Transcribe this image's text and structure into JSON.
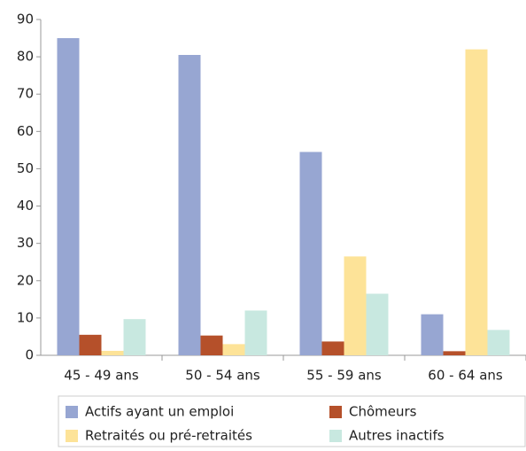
{
  "chart_data": {
    "type": "bar",
    "categories": [
      "45 - 49 ans",
      "50 - 54 ans",
      "55 - 59 ans",
      "60 - 64 ans"
    ],
    "series": [
      {
        "name": "Actifs ayant un emploi",
        "color": "#97a6d2",
        "values": [
          85,
          80.5,
          54.5,
          11
        ]
      },
      {
        "name": "Chômeurs",
        "color": "#b5502a",
        "values": [
          5.5,
          5.3,
          3.7,
          1.1
        ]
      },
      {
        "name": "Retraités ou pré-retraités",
        "color": "#fde398",
        "values": [
          1.2,
          3,
          26.5,
          82
        ]
      },
      {
        "name": "Autres inactifs",
        "color": "#c8e8e0",
        "values": [
          9.7,
          12,
          16.5,
          6.8
        ]
      }
    ],
    "ylim": [
      0,
      90
    ],
    "yticks": [
      0,
      10,
      20,
      30,
      40,
      50,
      60,
      70,
      80,
      90
    ]
  }
}
